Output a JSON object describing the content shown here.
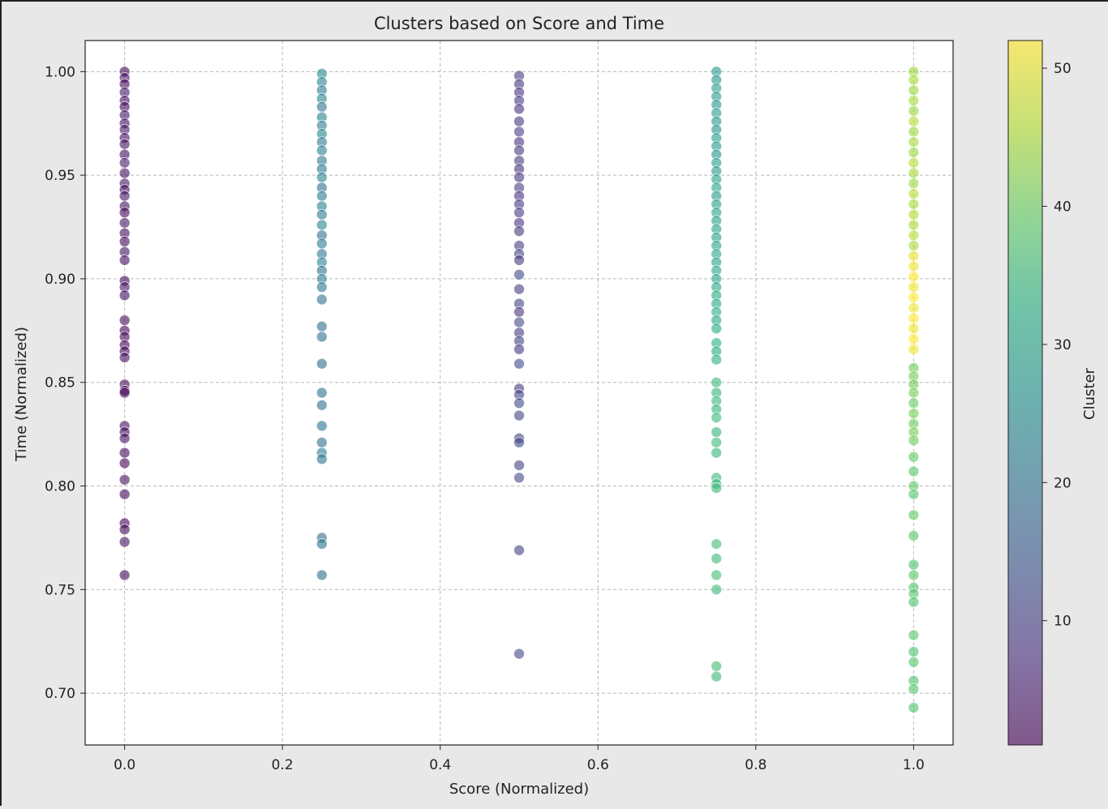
{
  "chart_data": {
    "type": "scatter",
    "title": "Clusters based on Score and Time",
    "xlabel": "Score (Normalized)",
    "ylabel": "Time (Normalized)",
    "xlim": [
      -0.05,
      1.05
    ],
    "ylim": [
      0.675,
      1.015
    ],
    "x_ticks": [
      0.0,
      0.2,
      0.4,
      0.6,
      0.8,
      1.0
    ],
    "x_tick_labels": [
      "0.0",
      "0.2",
      "0.4",
      "0.6",
      "0.8",
      "1.0"
    ],
    "y_ticks": [
      0.7,
      0.75,
      0.8,
      0.85,
      0.9,
      0.95,
      1.0
    ],
    "y_tick_labels": [
      "0.70",
      "0.75",
      "0.80",
      "0.85",
      "0.90",
      "0.95",
      "1.00"
    ],
    "grid": true,
    "colorbar": {
      "label": "Cluster",
      "colormap": "viridis",
      "range": [
        1,
        52
      ],
      "ticks": [
        10,
        20,
        30,
        40,
        50
      ],
      "tick_labels": [
        "10",
        "20",
        "30",
        "40",
        "50"
      ]
    },
    "marker_alpha": 0.6,
    "points": [
      {
        "x": 0.0,
        "y": 1.0,
        "c": 2
      },
      {
        "x": 0.0,
        "y": 0.997,
        "c": 3
      },
      {
        "x": 0.0,
        "y": 0.994,
        "c": 2
      },
      {
        "x": 0.0,
        "y": 0.99,
        "c": 4
      },
      {
        "x": 0.0,
        "y": 0.986,
        "c": 3
      },
      {
        "x": 0.0,
        "y": 0.983,
        "c": 2
      },
      {
        "x": 0.0,
        "y": 0.979,
        "c": 4
      },
      {
        "x": 0.0,
        "y": 0.975,
        "c": 3
      },
      {
        "x": 0.0,
        "y": 0.972,
        "c": 5
      },
      {
        "x": 0.0,
        "y": 0.968,
        "c": 2
      },
      {
        "x": 0.0,
        "y": 0.965,
        "c": 4
      },
      {
        "x": 0.0,
        "y": 0.96,
        "c": 3
      },
      {
        "x": 0.0,
        "y": 0.956,
        "c": 5
      },
      {
        "x": 0.0,
        "y": 0.951,
        "c": 3
      },
      {
        "x": 0.0,
        "y": 0.946,
        "c": 4
      },
      {
        "x": 0.0,
        "y": 0.943,
        "c": 2
      },
      {
        "x": 0.0,
        "y": 0.94,
        "c": 4
      },
      {
        "x": 0.0,
        "y": 0.935,
        "c": 3
      },
      {
        "x": 0.0,
        "y": 0.932,
        "c": 2
      },
      {
        "x": 0.0,
        "y": 0.927,
        "c": 4
      },
      {
        "x": 0.0,
        "y": 0.922,
        "c": 3
      },
      {
        "x": 0.0,
        "y": 0.918,
        "c": 2
      },
      {
        "x": 0.0,
        "y": 0.913,
        "c": 4
      },
      {
        "x": 0.0,
        "y": 0.909,
        "c": 3
      },
      {
        "x": 0.0,
        "y": 0.899,
        "c": 2
      },
      {
        "x": 0.0,
        "y": 0.896,
        "c": 4
      },
      {
        "x": 0.0,
        "y": 0.892,
        "c": 3
      },
      {
        "x": 0.0,
        "y": 0.88,
        "c": 2
      },
      {
        "x": 0.0,
        "y": 0.875,
        "c": 1
      },
      {
        "x": 0.0,
        "y": 0.872,
        "c": 2
      },
      {
        "x": 0.0,
        "y": 0.868,
        "c": 1
      },
      {
        "x": 0.0,
        "y": 0.865,
        "c": 2
      },
      {
        "x": 0.0,
        "y": 0.862,
        "c": 3
      },
      {
        "x": 0.0,
        "y": 0.849,
        "c": 2
      },
      {
        "x": 0.0,
        "y": 0.846,
        "c": 1
      },
      {
        "x": 0.0,
        "y": 0.845,
        "c": 2
      },
      {
        "x": 0.0,
        "y": 0.829,
        "c": 3
      },
      {
        "x": 0.0,
        "y": 0.826,
        "c": 2
      },
      {
        "x": 0.0,
        "y": 0.823,
        "c": 3
      },
      {
        "x": 0.0,
        "y": 0.816,
        "c": 2
      },
      {
        "x": 0.0,
        "y": 0.811,
        "c": 1
      },
      {
        "x": 0.0,
        "y": 0.803,
        "c": 3
      },
      {
        "x": 0.0,
        "y": 0.796,
        "c": 2
      },
      {
        "x": 0.0,
        "y": 0.782,
        "c": 1
      },
      {
        "x": 0.0,
        "y": 0.779,
        "c": 2
      },
      {
        "x": 0.0,
        "y": 0.773,
        "c": 3
      },
      {
        "x": 0.0,
        "y": 0.757,
        "c": 2
      },
      {
        "x": 0.25,
        "y": 0.999,
        "c": 24
      },
      {
        "x": 0.25,
        "y": 0.995,
        "c": 23
      },
      {
        "x": 0.25,
        "y": 0.991,
        "c": 22
      },
      {
        "x": 0.25,
        "y": 0.987,
        "c": 24
      },
      {
        "x": 0.25,
        "y": 0.983,
        "c": 21
      },
      {
        "x": 0.25,
        "y": 0.978,
        "c": 23
      },
      {
        "x": 0.25,
        "y": 0.974,
        "c": 22
      },
      {
        "x": 0.25,
        "y": 0.97,
        "c": 24
      },
      {
        "x": 0.25,
        "y": 0.966,
        "c": 21
      },
      {
        "x": 0.25,
        "y": 0.962,
        "c": 23
      },
      {
        "x": 0.25,
        "y": 0.957,
        "c": 22
      },
      {
        "x": 0.25,
        "y": 0.953,
        "c": 21
      },
      {
        "x": 0.25,
        "y": 0.949,
        "c": 24
      },
      {
        "x": 0.25,
        "y": 0.944,
        "c": 20
      },
      {
        "x": 0.25,
        "y": 0.94,
        "c": 22
      },
      {
        "x": 0.25,
        "y": 0.935,
        "c": 23
      },
      {
        "x": 0.25,
        "y": 0.931,
        "c": 21
      },
      {
        "x": 0.25,
        "y": 0.926,
        "c": 24
      },
      {
        "x": 0.25,
        "y": 0.921,
        "c": 20
      },
      {
        "x": 0.25,
        "y": 0.917,
        "c": 22
      },
      {
        "x": 0.25,
        "y": 0.912,
        "c": 21
      },
      {
        "x": 0.25,
        "y": 0.908,
        "c": 23
      },
      {
        "x": 0.25,
        "y": 0.904,
        "c": 20
      },
      {
        "x": 0.25,
        "y": 0.9,
        "c": 22
      },
      {
        "x": 0.25,
        "y": 0.896,
        "c": 21
      },
      {
        "x": 0.25,
        "y": 0.89,
        "c": 20
      },
      {
        "x": 0.25,
        "y": 0.877,
        "c": 19
      },
      {
        "x": 0.25,
        "y": 0.872,
        "c": 20
      },
      {
        "x": 0.25,
        "y": 0.859,
        "c": 19
      },
      {
        "x": 0.25,
        "y": 0.845,
        "c": 20
      },
      {
        "x": 0.25,
        "y": 0.839,
        "c": 19
      },
      {
        "x": 0.25,
        "y": 0.829,
        "c": 20
      },
      {
        "x": 0.25,
        "y": 0.821,
        "c": 19
      },
      {
        "x": 0.25,
        "y": 0.816,
        "c": 21
      },
      {
        "x": 0.25,
        "y": 0.813,
        "c": 20
      },
      {
        "x": 0.25,
        "y": 0.775,
        "c": 19
      },
      {
        "x": 0.25,
        "y": 0.772,
        "c": 20
      },
      {
        "x": 0.25,
        "y": 0.757,
        "c": 19
      },
      {
        "x": 0.5,
        "y": 0.998,
        "c": 10
      },
      {
        "x": 0.5,
        "y": 0.994,
        "c": 9
      },
      {
        "x": 0.5,
        "y": 0.99,
        "c": 8
      },
      {
        "x": 0.5,
        "y": 0.986,
        "c": 10
      },
      {
        "x": 0.5,
        "y": 0.982,
        "c": 8
      },
      {
        "x": 0.5,
        "y": 0.976,
        "c": 9
      },
      {
        "x": 0.5,
        "y": 0.971,
        "c": 10
      },
      {
        "x": 0.5,
        "y": 0.966,
        "c": 8
      },
      {
        "x": 0.5,
        "y": 0.962,
        "c": 9
      },
      {
        "x": 0.5,
        "y": 0.957,
        "c": 10
      },
      {
        "x": 0.5,
        "y": 0.953,
        "c": 8
      },
      {
        "x": 0.5,
        "y": 0.949,
        "c": 9
      },
      {
        "x": 0.5,
        "y": 0.944,
        "c": 10
      },
      {
        "x": 0.5,
        "y": 0.94,
        "c": 8
      },
      {
        "x": 0.5,
        "y": 0.936,
        "c": 9
      },
      {
        "x": 0.5,
        "y": 0.932,
        "c": 10
      },
      {
        "x": 0.5,
        "y": 0.927,
        "c": 8
      },
      {
        "x": 0.5,
        "y": 0.923,
        "c": 9
      },
      {
        "x": 0.5,
        "y": 0.916,
        "c": 10
      },
      {
        "x": 0.5,
        "y": 0.912,
        "c": 11
      },
      {
        "x": 0.5,
        "y": 0.909,
        "c": 9
      },
      {
        "x": 0.5,
        "y": 0.902,
        "c": 12
      },
      {
        "x": 0.5,
        "y": 0.895,
        "c": 10
      },
      {
        "x": 0.5,
        "y": 0.888,
        "c": 11
      },
      {
        "x": 0.5,
        "y": 0.884,
        "c": 9
      },
      {
        "x": 0.5,
        "y": 0.879,
        "c": 12
      },
      {
        "x": 0.5,
        "y": 0.874,
        "c": 10
      },
      {
        "x": 0.5,
        "y": 0.87,
        "c": 11
      },
      {
        "x": 0.5,
        "y": 0.866,
        "c": 9
      },
      {
        "x": 0.5,
        "y": 0.859,
        "c": 12
      },
      {
        "x": 0.5,
        "y": 0.847,
        "c": 10
      },
      {
        "x": 0.5,
        "y": 0.844,
        "c": 11
      },
      {
        "x": 0.5,
        "y": 0.84,
        "c": 12
      },
      {
        "x": 0.5,
        "y": 0.834,
        "c": 11
      },
      {
        "x": 0.5,
        "y": 0.823,
        "c": 10
      },
      {
        "x": 0.5,
        "y": 0.821,
        "c": 12
      },
      {
        "x": 0.5,
        "y": 0.81,
        "c": 11
      },
      {
        "x": 0.5,
        "y": 0.804,
        "c": 12
      },
      {
        "x": 0.5,
        "y": 0.769,
        "c": 11
      },
      {
        "x": 0.5,
        "y": 0.719,
        "c": 12
      },
      {
        "x": 0.75,
        "y": 1.0,
        "c": 28
      },
      {
        "x": 0.75,
        "y": 0.996,
        "c": 27
      },
      {
        "x": 0.75,
        "y": 0.992,
        "c": 29
      },
      {
        "x": 0.75,
        "y": 0.988,
        "c": 28
      },
      {
        "x": 0.75,
        "y": 0.984,
        "c": 27
      },
      {
        "x": 0.75,
        "y": 0.98,
        "c": 29
      },
      {
        "x": 0.75,
        "y": 0.976,
        "c": 28
      },
      {
        "x": 0.75,
        "y": 0.972,
        "c": 27
      },
      {
        "x": 0.75,
        "y": 0.968,
        "c": 29
      },
      {
        "x": 0.75,
        "y": 0.964,
        "c": 28
      },
      {
        "x": 0.75,
        "y": 0.96,
        "c": 27
      },
      {
        "x": 0.75,
        "y": 0.956,
        "c": 29
      },
      {
        "x": 0.75,
        "y": 0.952,
        "c": 28
      },
      {
        "x": 0.75,
        "y": 0.948,
        "c": 29
      },
      {
        "x": 0.75,
        "y": 0.944,
        "c": 30
      },
      {
        "x": 0.75,
        "y": 0.94,
        "c": 28
      },
      {
        "x": 0.75,
        "y": 0.936,
        "c": 29
      },
      {
        "x": 0.75,
        "y": 0.932,
        "c": 30
      },
      {
        "x": 0.75,
        "y": 0.928,
        "c": 29
      },
      {
        "x": 0.75,
        "y": 0.924,
        "c": 30
      },
      {
        "x": 0.75,
        "y": 0.92,
        "c": 29
      },
      {
        "x": 0.75,
        "y": 0.916,
        "c": 30
      },
      {
        "x": 0.75,
        "y": 0.912,
        "c": 31
      },
      {
        "x": 0.75,
        "y": 0.908,
        "c": 30
      },
      {
        "x": 0.75,
        "y": 0.904,
        "c": 31
      },
      {
        "x": 0.75,
        "y": 0.9,
        "c": 30
      },
      {
        "x": 0.75,
        "y": 0.896,
        "c": 31
      },
      {
        "x": 0.75,
        "y": 0.892,
        "c": 32
      },
      {
        "x": 0.75,
        "y": 0.888,
        "c": 31
      },
      {
        "x": 0.75,
        "y": 0.884,
        "c": 32
      },
      {
        "x": 0.75,
        "y": 0.88,
        "c": 31
      },
      {
        "x": 0.75,
        "y": 0.876,
        "c": 32
      },
      {
        "x": 0.75,
        "y": 0.869,
        "c": 33
      },
      {
        "x": 0.75,
        "y": 0.865,
        "c": 32
      },
      {
        "x": 0.75,
        "y": 0.861,
        "c": 33
      },
      {
        "x": 0.75,
        "y": 0.85,
        "c": 35
      },
      {
        "x": 0.75,
        "y": 0.845,
        "c": 34
      },
      {
        "x": 0.75,
        "y": 0.841,
        "c": 35
      },
      {
        "x": 0.75,
        "y": 0.837,
        "c": 34
      },
      {
        "x": 0.75,
        "y": 0.833,
        "c": 35
      },
      {
        "x": 0.75,
        "y": 0.826,
        "c": 34
      },
      {
        "x": 0.75,
        "y": 0.821,
        "c": 35
      },
      {
        "x": 0.75,
        "y": 0.816,
        "c": 34
      },
      {
        "x": 0.75,
        "y": 0.804,
        "c": 35
      },
      {
        "x": 0.75,
        "y": 0.801,
        "c": 34
      },
      {
        "x": 0.75,
        "y": 0.799,
        "c": 35
      },
      {
        "x": 0.75,
        "y": 0.772,
        "c": 36
      },
      {
        "x": 0.75,
        "y": 0.765,
        "c": 35
      },
      {
        "x": 0.75,
        "y": 0.757,
        "c": 36
      },
      {
        "x": 0.75,
        "y": 0.75,
        "c": 35
      },
      {
        "x": 0.75,
        "y": 0.713,
        "c": 36
      },
      {
        "x": 0.75,
        "y": 0.708,
        "c": 35
      },
      {
        "x": 1.0,
        "y": 1.0,
        "c": 44
      },
      {
        "x": 1.0,
        "y": 0.996,
        "c": 45
      },
      {
        "x": 1.0,
        "y": 0.991,
        "c": 44
      },
      {
        "x": 1.0,
        "y": 0.986,
        "c": 45
      },
      {
        "x": 1.0,
        "y": 0.981,
        "c": 44
      },
      {
        "x": 1.0,
        "y": 0.976,
        "c": 46
      },
      {
        "x": 1.0,
        "y": 0.971,
        "c": 44
      },
      {
        "x": 1.0,
        "y": 0.966,
        "c": 45
      },
      {
        "x": 1.0,
        "y": 0.961,
        "c": 44
      },
      {
        "x": 1.0,
        "y": 0.956,
        "c": 46
      },
      {
        "x": 1.0,
        "y": 0.951,
        "c": 45
      },
      {
        "x": 1.0,
        "y": 0.946,
        "c": 44
      },
      {
        "x": 1.0,
        "y": 0.941,
        "c": 46
      },
      {
        "x": 1.0,
        "y": 0.936,
        "c": 45
      },
      {
        "x": 1.0,
        "y": 0.931,
        "c": 46
      },
      {
        "x": 1.0,
        "y": 0.926,
        "c": 45
      },
      {
        "x": 1.0,
        "y": 0.921,
        "c": 46
      },
      {
        "x": 1.0,
        "y": 0.916,
        "c": 45
      },
      {
        "x": 1.0,
        "y": 0.911,
        "c": 50
      },
      {
        "x": 1.0,
        "y": 0.906,
        "c": 51
      },
      {
        "x": 1.0,
        "y": 0.901,
        "c": 52
      },
      {
        "x": 1.0,
        "y": 0.896,
        "c": 51
      },
      {
        "x": 1.0,
        "y": 0.891,
        "c": 52
      },
      {
        "x": 1.0,
        "y": 0.886,
        "c": 51
      },
      {
        "x": 1.0,
        "y": 0.881,
        "c": 52
      },
      {
        "x": 1.0,
        "y": 0.876,
        "c": 51
      },
      {
        "x": 1.0,
        "y": 0.871,
        "c": 52
      },
      {
        "x": 1.0,
        "y": 0.866,
        "c": 51
      },
      {
        "x": 1.0,
        "y": 0.857,
        "c": 40
      },
      {
        "x": 1.0,
        "y": 0.853,
        "c": 41
      },
      {
        "x": 1.0,
        "y": 0.849,
        "c": 40
      },
      {
        "x": 1.0,
        "y": 0.845,
        "c": 41
      },
      {
        "x": 1.0,
        "y": 0.84,
        "c": 40
      },
      {
        "x": 1.0,
        "y": 0.835,
        "c": 41
      },
      {
        "x": 1.0,
        "y": 0.83,
        "c": 40
      },
      {
        "x": 1.0,
        "y": 0.826,
        "c": 41
      },
      {
        "x": 1.0,
        "y": 0.822,
        "c": 40
      },
      {
        "x": 1.0,
        "y": 0.814,
        "c": 39
      },
      {
        "x": 1.0,
        "y": 0.807,
        "c": 38
      },
      {
        "x": 1.0,
        "y": 0.8,
        "c": 39
      },
      {
        "x": 1.0,
        "y": 0.796,
        "c": 38
      },
      {
        "x": 1.0,
        "y": 0.786,
        "c": 39
      },
      {
        "x": 1.0,
        "y": 0.776,
        "c": 38
      },
      {
        "x": 1.0,
        "y": 0.762,
        "c": 37
      },
      {
        "x": 1.0,
        "y": 0.757,
        "c": 38
      },
      {
        "x": 1.0,
        "y": 0.751,
        "c": 37
      },
      {
        "x": 1.0,
        "y": 0.748,
        "c": 38
      },
      {
        "x": 1.0,
        "y": 0.744,
        "c": 37
      },
      {
        "x": 1.0,
        "y": 0.728,
        "c": 38
      },
      {
        "x": 1.0,
        "y": 0.72,
        "c": 37
      },
      {
        "x": 1.0,
        "y": 0.715,
        "c": 38
      },
      {
        "x": 1.0,
        "y": 0.706,
        "c": 37
      },
      {
        "x": 1.0,
        "y": 0.702,
        "c": 38
      },
      {
        "x": 1.0,
        "y": 0.693,
        "c": 37
      }
    ]
  }
}
